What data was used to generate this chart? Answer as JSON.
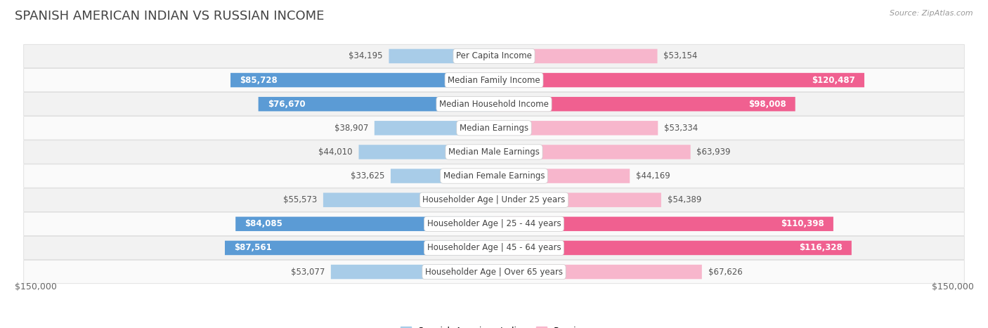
{
  "title": "SPANISH AMERICAN INDIAN VS RUSSIAN INCOME",
  "source": "Source: ZipAtlas.com",
  "categories": [
    "Per Capita Income",
    "Median Family Income",
    "Median Household Income",
    "Median Earnings",
    "Median Male Earnings",
    "Median Female Earnings",
    "Householder Age | Under 25 years",
    "Householder Age | 25 - 44 years",
    "Householder Age | 45 - 64 years",
    "Householder Age | Over 65 years"
  ],
  "spanish_values": [
    34195,
    85728,
    76670,
    38907,
    44010,
    33625,
    55573,
    84085,
    87561,
    53077
  ],
  "russian_values": [
    53154,
    120487,
    98008,
    53334,
    63939,
    44169,
    54389,
    110398,
    116328,
    67626
  ],
  "spanish_color_light": "#a8cce8",
  "spanish_color_dark": "#5b9bd5",
  "russian_color_light": "#f7b6cc",
  "russian_color_dark": "#f06090",
  "label_color_dark": "#555555",
  "label_color_white": "#ffffff",
  "max_value": 150000,
  "xlabel_left": "$150,000",
  "xlabel_right": "$150,000",
  "legend_spanish": "Spanish American Indian",
  "legend_russian": "Russian",
  "bar_height": 0.6,
  "row_bg_odd": "#f2f2f2",
  "row_bg_even": "#fafafa",
  "background_color": "#ffffff",
  "title_fontsize": 13,
  "label_fontsize": 8.5,
  "category_fontsize": 8.5,
  "spanish_threshold": 60000,
  "russian_threshold": 90000
}
